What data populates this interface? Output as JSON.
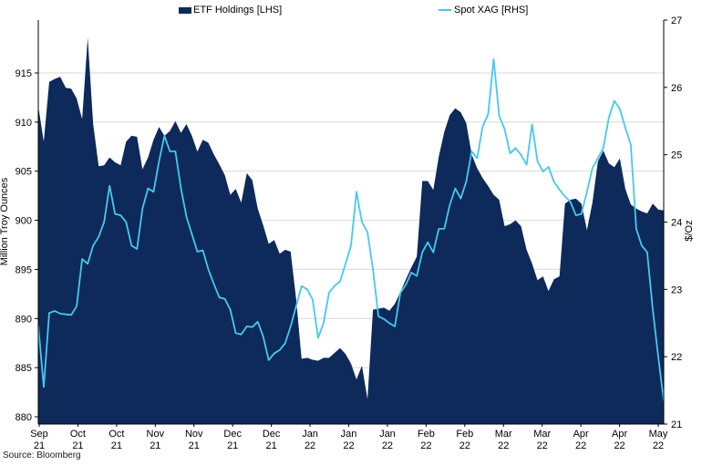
{
  "legend": [
    {
      "label": "ETF Holdings [LHS]",
      "swatch": "area",
      "color": "#0e2a5a"
    },
    {
      "label": "Spot XAG [RHS]",
      "swatch": "line",
      "color": "#45c8f0"
    }
  ],
  "source_note": "Source: Bloomberg",
  "colors": {
    "etf_area": "#0e2a5a",
    "xag_line": "#45c8f0",
    "gridline": "#d9d9d9",
    "axis": "#000000",
    "background": "#ffffff"
  },
  "chart_data": {
    "type": "combo",
    "title": "",
    "legend_position": "top",
    "grid": "horizontal gridlines at left-axis ticks",
    "left_axis": {
      "title": "Million Troy  Ounces",
      "ticks": [
        880,
        885,
        890,
        895,
        900,
        905,
        910,
        915
      ],
      "range": [
        880,
        920.5
      ]
    },
    "right_axis": {
      "title": "$/Oz",
      "ticks": [
        21,
        22,
        23,
        24,
        25,
        26,
        27
      ],
      "range": [
        21,
        27
      ]
    },
    "x_axis": {
      "note": "biweekly ticks, Sep 2021 to May 2022; series sampled at 115 evenly spaced points across full x-range",
      "tick_labels": [
        [
          "Sep",
          "21"
        ],
        [
          "Oct",
          "21"
        ],
        [
          "Oct",
          "21"
        ],
        [
          "Nov",
          "21"
        ],
        [
          "Nov",
          "21"
        ],
        [
          "Dec",
          "21"
        ],
        [
          "Dec",
          "21"
        ],
        [
          "Jan",
          "22"
        ],
        [
          "Jan",
          "22"
        ],
        [
          "Jan",
          "22"
        ],
        [
          "Feb",
          "22"
        ],
        [
          "Feb",
          "22"
        ],
        [
          "Mar",
          "22"
        ],
        [
          "Mar",
          "22"
        ],
        [
          "Apr",
          "22"
        ],
        [
          "Apr",
          "22"
        ],
        [
          "May",
          "22"
        ]
      ]
    },
    "series": [
      {
        "name": "ETF Holdings [LHS]",
        "type": "area",
        "axis": "left",
        "color": "#0e2a5a",
        "values": [
          911.6,
          908.0,
          914.1,
          914.4,
          914.6,
          913.5,
          913.4,
          912.4,
          910.3,
          918.6,
          909.8,
          905.5,
          905.6,
          906.4,
          905.9,
          905.6,
          908.0,
          908.6,
          908.5,
          905.2,
          906.4,
          908.2,
          909.5,
          908.6,
          909.1,
          910.1,
          908.9,
          909.8,
          908.6,
          907.0,
          908.2,
          907.9,
          906.7,
          905.7,
          904.6,
          902.6,
          903.2,
          901.8,
          904.8,
          904.1,
          901.2,
          899.5,
          897.6,
          898.0,
          896.6,
          897.0,
          896.8,
          892.0,
          885.9,
          886.0,
          885.8,
          885.7,
          886.0,
          886.0,
          886.5,
          887.0,
          886.4,
          885.4,
          883.8,
          885.2,
          881.8,
          890.9,
          891.0,
          891.1,
          890.8,
          891.5,
          892.7,
          894.0,
          895.2,
          896.3,
          904.0,
          904.0,
          903.1,
          906.5,
          909.0,
          910.7,
          911.4,
          911.0,
          909.9,
          906.7,
          905.3,
          904.3,
          903.5,
          902.6,
          902.1,
          899.4,
          899.6,
          900.0,
          899.4,
          897.0,
          895.6,
          893.9,
          894.3,
          892.8,
          894.0,
          894.3,
          901.7,
          902.1,
          902.2,
          901.7,
          899.0,
          901.8,
          906.0,
          907.1,
          905.8,
          905.4,
          906.3,
          903.2,
          901.6,
          901.2,
          900.9,
          900.7,
          901.7,
          901.1,
          901.0
        ]
      },
      {
        "name": "Spot XAG [RHS]",
        "type": "line",
        "axis": "right",
        "color": "#45c8f0",
        "values": [
          22.46,
          21.55,
          22.65,
          22.68,
          22.64,
          22.63,
          22.62,
          22.75,
          23.45,
          23.38,
          23.65,
          23.78,
          24.0,
          24.54,
          24.12,
          24.1,
          24.0,
          23.65,
          23.6,
          24.2,
          24.5,
          24.45,
          24.9,
          25.28,
          25.05,
          25.05,
          24.5,
          24.08,
          23.82,
          23.56,
          23.58,
          23.3,
          23.08,
          22.88,
          22.86,
          22.7,
          22.35,
          22.33,
          22.45,
          22.44,
          22.52,
          22.3,
          21.95,
          22.05,
          22.1,
          22.2,
          22.45,
          22.75,
          23.05,
          23.0,
          22.85,
          22.28,
          22.5,
          22.95,
          23.05,
          23.12,
          23.38,
          23.65,
          24.45,
          24.0,
          23.85,
          23.3,
          22.6,
          22.56,
          22.5,
          22.45,
          22.95,
          23.07,
          23.25,
          23.2,
          23.55,
          23.7,
          23.55,
          23.9,
          23.9,
          24.25,
          24.5,
          24.35,
          24.6,
          25.05,
          24.95,
          25.42,
          25.6,
          26.42,
          25.58,
          25.38,
          25.02,
          25.1,
          25.0,
          24.85,
          25.45,
          24.9,
          24.75,
          24.82,
          24.6,
          24.48,
          24.38,
          24.3,
          24.1,
          24.12,
          24.45,
          24.8,
          24.95,
          25.1,
          25.55,
          25.8,
          25.68,
          25.4,
          25.15,
          23.9,
          23.65,
          23.55,
          22.7,
          22.0,
          21.35
        ]
      }
    ]
  }
}
